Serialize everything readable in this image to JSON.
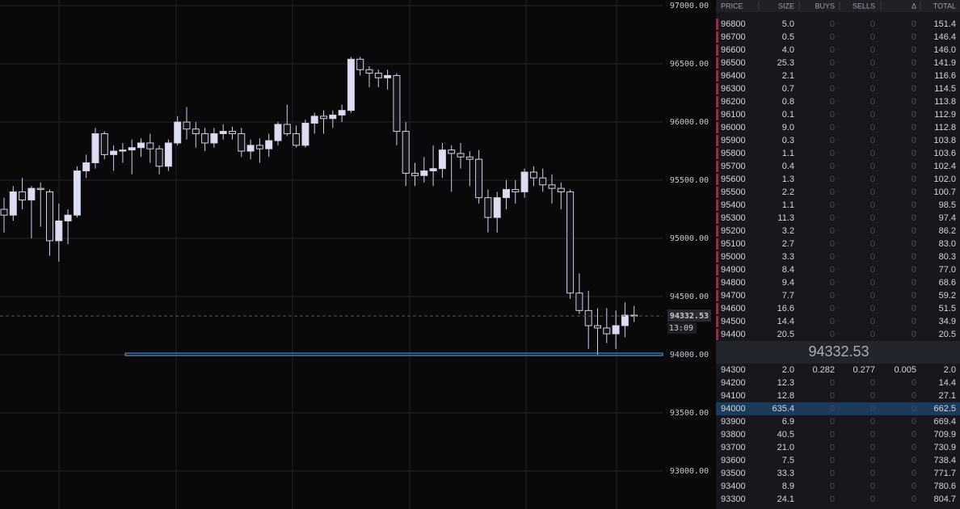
{
  "chart_data": {
    "type": "candlestick",
    "open": [
      95250,
      95200,
      95400,
      95330,
      95430,
      95400,
      94980,
      95150,
      95200,
      95580,
      95650,
      95900,
      95720,
      95750,
      95760,
      95780,
      95820,
      95770,
      95620,
      95820,
      96000,
      95940,
      95900,
      95820,
      95900,
      95920,
      95900,
      95750,
      95800,
      95770,
      95840,
      95980,
      95900,
      95800,
      95990,
      96050,
      96030,
      96060,
      96100,
      96540,
      96450,
      96420,
      96380,
      96400,
      95920,
      95560,
      95540,
      95580,
      95600,
      95760,
      95730,
      95700,
      95680,
      95350,
      95180,
      95350,
      95420,
      95400,
      95570,
      95520,
      95460,
      95430,
      95400,
      94530,
      94380,
      94250,
      94230,
      94180,
      94250,
      94340
    ],
    "high": [
      95350,
      95450,
      95520,
      95450,
      95480,
      95420,
      95300,
      95250,
      95620,
      95720,
      95950,
      95920,
      95800,
      95820,
      95850,
      95860,
      95900,
      95800,
      95850,
      96050,
      96130,
      96000,
      95950,
      95950,
      95980,
      95960,
      95950,
      95850,
      95860,
      95900,
      96000,
      96150,
      95970,
      96020,
      96080,
      96100,
      96100,
      96150,
      96560,
      96560,
      96480,
      96450,
      96450,
      96420,
      96000,
      95650,
      95700,
      95800,
      95820,
      95800,
      95820,
      95750,
      95760,
      95420,
      95400,
      95500,
      95500,
      95600,
      95620,
      95600,
      95550,
      95480,
      95420,
      94700,
      94550,
      94400,
      94400,
      94380,
      94450,
      94420
    ],
    "low": [
      95050,
      95150,
      95250,
      95000,
      95100,
      94850,
      94800,
      94950,
      95180,
      95520,
      95600,
      95680,
      95580,
      95650,
      95550,
      95700,
      95650,
      95550,
      95580,
      95800,
      95850,
      95780,
      95750,
      95780,
      95850,
      95850,
      95700,
      95680,
      95650,
      95700,
      95800,
      95880,
      95780,
      95780,
      95900,
      95900,
      95950,
      96000,
      96080,
      96400,
      96300,
      96300,
      96280,
      95800,
      95450,
      95450,
      95480,
      95450,
      95520,
      95400,
      95600,
      95450,
      95300,
      95050,
      95050,
      95250,
      95300,
      95350,
      95450,
      95400,
      95300,
      95250,
      94480,
      94350,
      94050,
      94000,
      94100,
      94050,
      94150,
      94280
    ],
    "close": [
      95200,
      95400,
      95330,
      95430,
      95420,
      94980,
      95150,
      95200,
      95580,
      95650,
      95900,
      95720,
      95750,
      95760,
      95780,
      95820,
      95770,
      95620,
      95820,
      96000,
      95940,
      95900,
      95820,
      95900,
      95920,
      95900,
      95750,
      95800,
      95770,
      95840,
      95980,
      95900,
      95800,
      95990,
      96050,
      96030,
      96060,
      96100,
      96540,
      96450,
      96420,
      96380,
      96400,
      95920,
      95560,
      95540,
      95580,
      95600,
      95760,
      95730,
      95700,
      95680,
      95350,
      95180,
      95350,
      95420,
      95400,
      95570,
      95520,
      95460,
      95430,
      95400,
      94530,
      94380,
      94250,
      94230,
      94180,
      94250,
      94340,
      94332.53
    ],
    "up_color": "#dcdcf4",
    "down_color": "#141318",
    "ylim": [
      92674,
      97049
    ],
    "yticks": [
      {
        "value": 97000,
        "label": "97000.00"
      },
      {
        "value": 96500,
        "label": "96500.00"
      },
      {
        "value": 96000,
        "label": "96000.00"
      },
      {
        "value": 95500,
        "label": "95500.00"
      },
      {
        "value": 95000,
        "label": "95000.00"
      },
      {
        "value": 94500,
        "label": "94500.00"
      },
      {
        "value": 94000,
        "label": "94000.00"
      },
      {
        "value": 93500,
        "label": "93500.00"
      },
      {
        "value": 93000,
        "label": "93000.00"
      }
    ],
    "grid": true,
    "last_price": 94332.53,
    "countdown": "13:09",
    "levels": [
      94000
    ],
    "level_color": "#5aa6e8"
  },
  "order_book": {
    "columns": [
      "PRICE",
      "SIZE",
      "BUYS",
      "SELLS",
      "Δ",
      "TOTAL"
    ],
    "asks": [
      [
        "96800",
        "5.0",
        "0",
        "0",
        "0",
        "151.4"
      ],
      [
        "96700",
        "0.5",
        "0",
        "0",
        "0",
        "146.4"
      ],
      [
        "96600",
        "4.0",
        "0",
        "0",
        "0",
        "146.0"
      ],
      [
        "96500",
        "25.3",
        "0",
        "0",
        "0",
        "141.9"
      ],
      [
        "96400",
        "2.1",
        "0",
        "0",
        "0",
        "116.6"
      ],
      [
        "96300",
        "0.7",
        "0",
        "0",
        "0",
        "114.5"
      ],
      [
        "96200",
        "0.8",
        "0",
        "0",
        "0",
        "113.8"
      ],
      [
        "96100",
        "0.1",
        "0",
        "0",
        "0",
        "112.9"
      ],
      [
        "96000",
        "9.0",
        "0",
        "0",
        "0",
        "112.8"
      ],
      [
        "95900",
        "0.3",
        "0",
        "0",
        "0",
        "103.8"
      ],
      [
        "95800",
        "1.1",
        "0",
        "0",
        "0",
        "103.6"
      ],
      [
        "95700",
        "0.4",
        "0",
        "0",
        "0",
        "102.4"
      ],
      [
        "95600",
        "1.3",
        "0",
        "0",
        "0",
        "102.0"
      ],
      [
        "95500",
        "2.2",
        "0",
        "0",
        "0",
        "100.7"
      ],
      [
        "95400",
        "1.1",
        "0",
        "0",
        "0",
        "98.5"
      ],
      [
        "95300",
        "11.3",
        "0",
        "0",
        "0",
        "97.4"
      ],
      [
        "95200",
        "3.2",
        "0",
        "0",
        "0",
        "86.2"
      ],
      [
        "95100",
        "2.7",
        "0",
        "0",
        "0",
        "83.0"
      ],
      [
        "95000",
        "3.3",
        "0",
        "0",
        "0",
        "80.3"
      ],
      [
        "94900",
        "8.4",
        "0",
        "0",
        "0",
        "77.0"
      ],
      [
        "94800",
        "9.4",
        "0",
        "0",
        "0",
        "68.6"
      ],
      [
        "94700",
        "7.7",
        "0",
        "0",
        "0",
        "59.2"
      ],
      [
        "94600",
        "16.6",
        "0",
        "0",
        "0",
        "51.5"
      ],
      [
        "94500",
        "14.4",
        "0",
        "0",
        "0",
        "34.9"
      ],
      [
        "94400",
        "20.5",
        "0",
        "0",
        "0",
        "20.5"
      ]
    ],
    "mid_price": "94332.53",
    "bids": [
      [
        "94300",
        "2.0",
        "0.282",
        "0.277",
        "0.005",
        "2.0"
      ],
      [
        "94200",
        "12.3",
        "0",
        "0",
        "0",
        "14.4"
      ],
      [
        "94100",
        "12.8",
        "0",
        "0",
        "0",
        "27.1"
      ],
      [
        "94000",
        "635.4",
        "0",
        "0",
        "0",
        "662.5"
      ],
      [
        "93900",
        "6.9",
        "0",
        "0",
        "0",
        "669.4"
      ],
      [
        "93800",
        "40.5",
        "0",
        "0",
        "0",
        "709.9"
      ],
      [
        "93700",
        "21.0",
        "0",
        "0",
        "0",
        "730.9"
      ],
      [
        "93600",
        "7.5",
        "0",
        "0",
        "0",
        "738.4"
      ],
      [
        "93500",
        "33.3",
        "0",
        "0",
        "0",
        "771.7"
      ],
      [
        "93400",
        "8.9",
        "0",
        "0",
        "0",
        "780.6"
      ],
      [
        "93300",
        "24.1",
        "0",
        "0",
        "0",
        "804.7"
      ]
    ],
    "highlighted_bid": 3
  }
}
